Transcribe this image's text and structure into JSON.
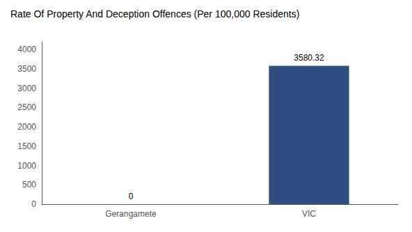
{
  "chart_data": {
    "type": "bar",
    "title": "Rate Of Property And Deception Offences (Per 100,000 Residents)",
    "categories": [
      "Gerangamete",
      "VIC"
    ],
    "values": [
      0,
      3580.32
    ],
    "color": "#2e4d80",
    "ylim": [
      0,
      4200
    ],
    "yticks": [
      0,
      500,
      1000,
      1500,
      2000,
      2500,
      3000,
      3500,
      4000
    ],
    "grid": false,
    "data_labels": true
  }
}
